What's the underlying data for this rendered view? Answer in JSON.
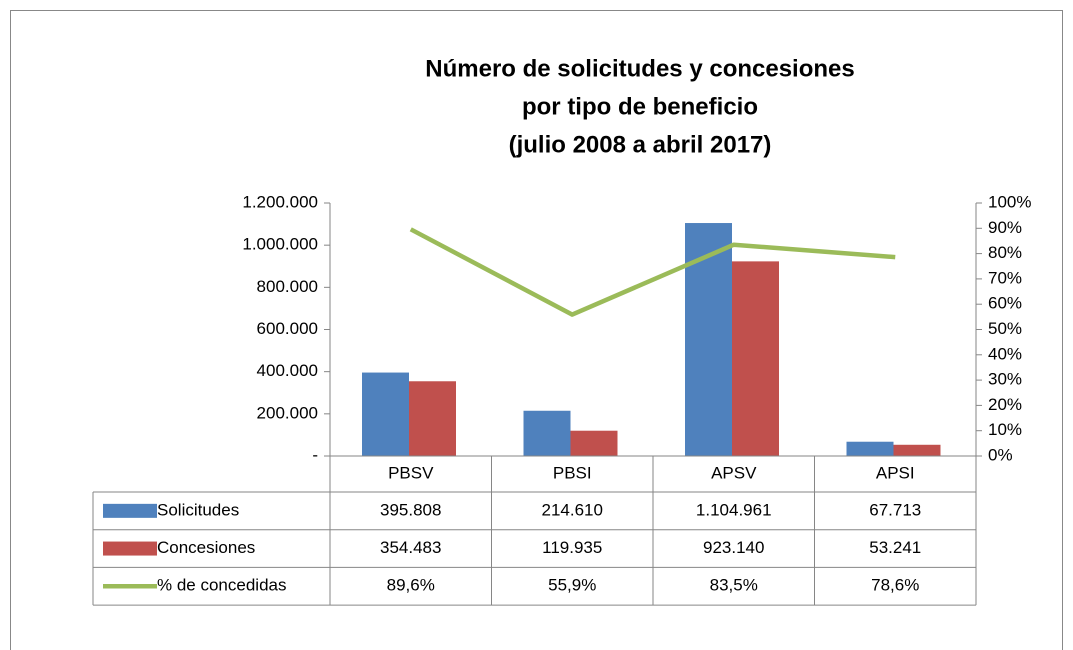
{
  "chart_data": {
    "type": "bar",
    "title": [
      "Número de solicitudes y concesiones",
      "por tipo de beneficio",
      "(julio 2008 a abril 2017)"
    ],
    "categories": [
      "PBSV",
      "PBSI",
      "APSV",
      "APSI"
    ],
    "series": [
      {
        "name": "Solicitudes",
        "color": "#4f81bd",
        "values": [
          395808,
          214610,
          1104961,
          67713
        ],
        "value_labels": [
          "395.808",
          "214.610",
          "1.104.961",
          "67.713"
        ]
      },
      {
        "name": "Concesiones",
        "color": "#c0504d",
        "values": [
          354483,
          119935,
          923140,
          53241
        ],
        "value_labels": [
          "354.483",
          "119.935",
          "923.140",
          "53.241"
        ]
      },
      {
        "name": "% de concedidas",
        "color": "#9bbb59",
        "type": "line",
        "axis": "y2",
        "values": [
          89.6,
          55.9,
          83.5,
          78.6
        ],
        "value_labels": [
          "89,6%",
          "55,9%",
          "83,5%",
          "78,6%"
        ]
      }
    ],
    "ylim": [
      0,
      1200000
    ],
    "yticks": [
      {
        "value": 0,
        "label": "-"
      },
      {
        "value": 200000,
        "label": "200.000"
      },
      {
        "value": 400000,
        "label": "400.000"
      },
      {
        "value": 600000,
        "label": "600.000"
      },
      {
        "value": 800000,
        "label": "800.000"
      },
      {
        "value": 1000000,
        "label": "1.000.000"
      },
      {
        "value": 1200000,
        "label": "1.200.000"
      }
    ],
    "y2lim": [
      0,
      100
    ],
    "y2ticks": [
      {
        "value": 0,
        "label": "0%"
      },
      {
        "value": 10,
        "label": "10%"
      },
      {
        "value": 20,
        "label": "20%"
      },
      {
        "value": 30,
        "label": "30%"
      },
      {
        "value": 40,
        "label": "40%"
      },
      {
        "value": 50,
        "label": "50%"
      },
      {
        "value": 60,
        "label": "60%"
      },
      {
        "value": 70,
        "label": "70%"
      },
      {
        "value": 80,
        "label": "80%"
      },
      {
        "value": 90,
        "label": "90%"
      },
      {
        "value": 100,
        "label": "100%"
      }
    ],
    "data_table": true
  }
}
